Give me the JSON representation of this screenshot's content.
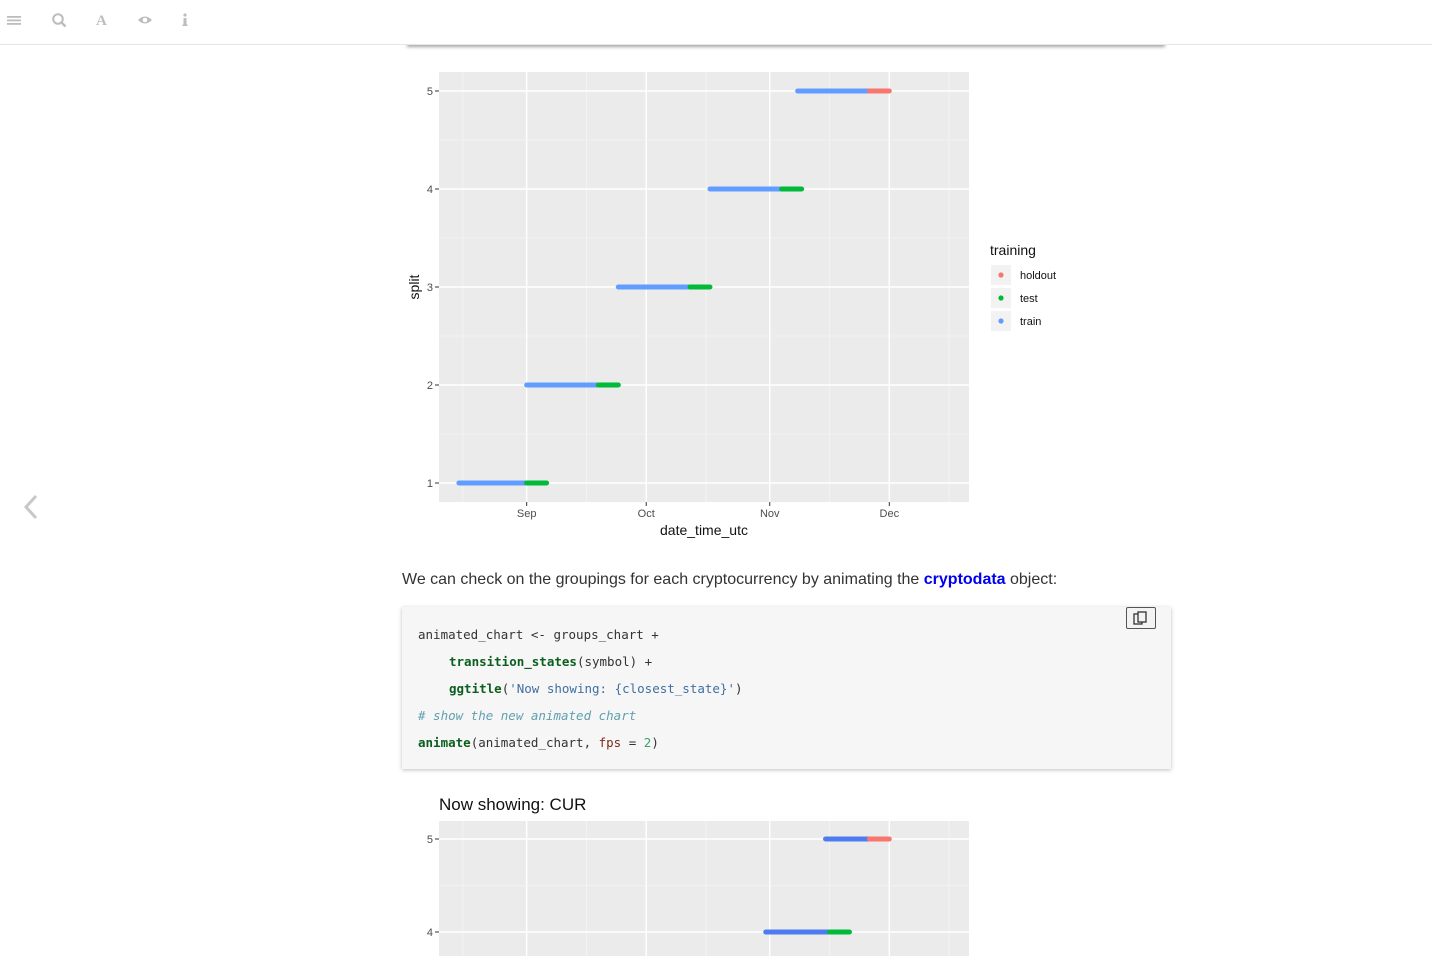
{
  "toolbar": {
    "icons": [
      "menu-icon",
      "search-icon",
      "font-icon",
      "eye-icon",
      "info-icon"
    ]
  },
  "chart1": {
    "chart_data": {
      "type": "line",
      "title": "",
      "xlabel": "date_time_utc",
      "ylabel": "split",
      "x_ticks": [
        "Sep",
        "Oct",
        "Nov",
        "Dec"
      ],
      "y_ticks": [
        "1",
        "2",
        "3",
        "4",
        "5"
      ],
      "xlim": [
        "2019-08-10",
        "2019-12-21"
      ],
      "ylim": [
        0.6,
        5.2
      ],
      "legend": {
        "title": "training",
        "position": "right",
        "entries": [
          {
            "name": "holdout",
            "color": "#F8766D"
          },
          {
            "name": "test",
            "color": "#00BA38"
          },
          {
            "name": "train",
            "color": "#619CFF"
          }
        ]
      },
      "series": [
        {
          "name": "train",
          "color": "#619CFF",
          "segments": [
            {
              "split": 1,
              "start": "2019-08-15",
              "end": "2019-09-01"
            },
            {
              "split": 2,
              "start": "2019-09-01",
              "end": "2019-09-19"
            },
            {
              "split": 3,
              "start": "2019-09-24",
              "end": "2019-10-12"
            },
            {
              "split": 4,
              "start": "2019-10-17",
              "end": "2019-11-04"
            },
            {
              "split": 5,
              "start": "2019-11-08",
              "end": "2019-11-26"
            }
          ]
        },
        {
          "name": "test",
          "color": "#00BA38",
          "segments": [
            {
              "split": 1,
              "start": "2019-09-01",
              "end": "2019-09-06"
            },
            {
              "split": 2,
              "start": "2019-09-19",
              "end": "2019-09-24"
            },
            {
              "split": 3,
              "start": "2019-10-12",
              "end": "2019-10-17"
            },
            {
              "split": 4,
              "start": "2019-11-04",
              "end": "2019-11-09"
            }
          ]
        },
        {
          "name": "holdout",
          "color": "#F8766D",
          "segments": [
            {
              "split": 5,
              "start": "2019-11-26",
              "end": "2019-12-01"
            }
          ]
        }
      ],
      "grid": true
    }
  },
  "prose": {
    "before": "We can check on the groupings for each cryptocurrency by animating the ",
    "link": "cryptodata",
    "after": " object:"
  },
  "code": {
    "line1": "animated_chart <- groups_chart +",
    "line2_fn": "transition_states",
    "line2_rest": "(symbol) +",
    "line3_fn": "ggtitle",
    "line3_open": "(",
    "line3_str": "'Now showing: {closest_state}'",
    "line3_close": ")",
    "line4_comment": "# show the new animated chart",
    "line5_fn": "animate",
    "line5_a": "(animated_chart, ",
    "line5_arg": "fps",
    "line5_eq": " = ",
    "line5_num": "2",
    "line5_close": ")"
  },
  "chart2": {
    "chart_data": {
      "type": "line",
      "title": "Now showing: CUR",
      "xlabel": "",
      "ylabel": "",
      "x_ticks": [],
      "y_ticks": [
        "4",
        "5"
      ],
      "xlim": [
        "2019-08-10",
        "2019-12-21"
      ],
      "ylim": [
        0.6,
        5.2
      ],
      "series": [
        {
          "name": "train",
          "color": "#4E7CF0",
          "segments": [
            {
              "split": 4,
              "start": "2019-10-31",
              "end": "2019-11-16"
            },
            {
              "split": 5,
              "start": "2019-11-15",
              "end": "2019-11-26"
            }
          ]
        },
        {
          "name": "test",
          "color": "#00BA38",
          "segments": [
            {
              "split": 4,
              "start": "2019-11-16",
              "end": "2019-11-21"
            }
          ]
        },
        {
          "name": "holdout",
          "color": "#F8766D",
          "segments": [
            {
              "split": 5,
              "start": "2019-11-26",
              "end": "2019-12-01"
            }
          ]
        }
      ],
      "grid": true
    }
  }
}
